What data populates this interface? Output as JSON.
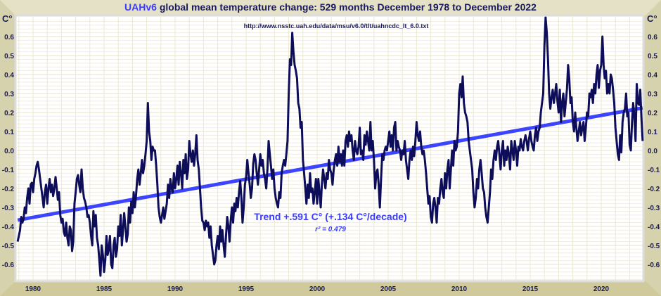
{
  "chart_data": {
    "type": "line",
    "title_prefix": "UAHv6",
    "title_rest": " global mean temperature change: 529 months December 1978 to December 2022",
    "subtitle": "http://www.nsstc.uah.edu/data/msu/v6.0/tlt/uahncdc_lt_6.0.txt",
    "ylabel_left": "C°",
    "ylabel_right": "C°",
    "ylim": [
      -0.68,
      0.68
    ],
    "xlim": [
      1978.9,
      2022.95
    ],
    "x_start": "December 1978",
    "x_end": "December 2022",
    "x_ticks": [
      "1980",
      "1985",
      "1990",
      "1995",
      "2000",
      "2005",
      "2010",
      "2015",
      "2020"
    ],
    "y_ticks": [
      "-0.6",
      "-0.5",
      "-0.4",
      "-0.3",
      "-0.2",
      "-0.1",
      "0.0",
      "0.1",
      "0.2",
      "0.3",
      "0.4",
      "0.5",
      "0.6"
    ],
    "grid": true,
    "trend": {
      "label": "Trend +.591 C° (+.134 C°/decade)",
      "r2_label": "r² = 0.479",
      "start": -0.367,
      "end": 0.224,
      "color": "#3c44ff"
    },
    "series_color": "#0d0d5a",
    "title_accent_color": "#3c3cff",
    "values": [
      -0.48,
      -0.45,
      -0.42,
      -0.35,
      -0.38,
      -0.36,
      -0.3,
      -0.33,
      -0.25,
      -0.2,
      -0.28,
      -0.18,
      -0.17,
      -0.22,
      -0.15,
      -0.12,
      -0.08,
      -0.06,
      -0.1,
      -0.15,
      -0.2,
      -0.25,
      -0.3,
      -0.22,
      -0.18,
      -0.28,
      -0.2,
      -0.15,
      -0.22,
      -0.18,
      -0.24,
      -0.2,
      -0.14,
      -0.2,
      -0.26,
      -0.22,
      -0.34,
      -0.38,
      -0.36,
      -0.43,
      -0.45,
      -0.38,
      -0.46,
      -0.5,
      -0.4,
      -0.42,
      -0.53,
      -0.48,
      -0.28,
      -0.22,
      -0.15,
      -0.13,
      -0.18,
      -0.22,
      -0.1,
      -0.2,
      -0.25,
      -0.27,
      -0.3,
      -0.35,
      -0.34,
      -0.38,
      -0.45,
      -0.5,
      -0.32,
      -0.4,
      -0.34,
      -0.46,
      -0.5,
      -0.58,
      -0.66,
      -0.5,
      -0.55,
      -0.64,
      -0.58,
      -0.45,
      -0.55,
      -0.52,
      -0.45,
      -0.6,
      -0.62,
      -0.5,
      -0.46,
      -0.56,
      -0.52,
      -0.4,
      -0.45,
      -0.34,
      -0.5,
      -0.42,
      -0.33,
      -0.4,
      -0.48,
      -0.44,
      -0.3,
      -0.38,
      -0.27,
      -0.33,
      -0.22,
      -0.3,
      -0.24,
      -0.15,
      -0.1,
      -0.18,
      -0.12,
      -0.05,
      -0.12,
      -0.08,
      -0.02,
      0.05,
      0.25,
      0.1,
      0.05,
      -0.05,
      0.02,
      0.0,
      0.0,
      -0.08,
      -0.18,
      -0.3,
      -0.35,
      -0.38,
      -0.34,
      -0.3,
      -0.36,
      -0.32,
      -0.28,
      -0.18,
      -0.25,
      -0.15,
      -0.2,
      -0.22,
      -0.12,
      -0.2,
      -0.15,
      -0.08,
      -0.18,
      -0.06,
      -0.12,
      -0.2,
      -0.05,
      -0.12,
      -0.02,
      -0.15,
      -0.1,
      0.05,
      -0.02,
      -0.06,
      0.0,
      -0.08,
      -0.02,
      0.08,
      -0.05,
      -0.1,
      -0.2,
      -0.3,
      -0.37,
      -0.38,
      -0.42,
      -0.37,
      -0.4,
      -0.38,
      -0.46,
      -0.4,
      -0.5,
      -0.55,
      -0.6,
      -0.58,
      -0.5,
      -0.45,
      -0.52,
      -0.4,
      -0.48,
      -0.42,
      -0.5,
      -0.56,
      -0.45,
      -0.35,
      -0.4,
      -0.48,
      -0.37,
      -0.3,
      -0.38,
      -0.28,
      -0.32,
      -0.25,
      -0.3,
      -0.22,
      -0.16,
      -0.25,
      -0.38,
      -0.3,
      -0.18,
      -0.14,
      -0.05,
      -0.12,
      -0.18,
      -0.25,
      -0.2,
      -0.07,
      -0.02,
      -0.05,
      -0.12,
      -0.18,
      -0.1,
      -0.02,
      -0.08,
      -0.05,
      -0.12,
      -0.15,
      -0.2,
      -0.1,
      0.05,
      -0.02,
      -0.08,
      -0.15,
      -0.1,
      -0.2,
      -0.25,
      -0.28,
      -0.3,
      -0.22,
      -0.25,
      -0.12,
      -0.08,
      -0.05,
      -0.08,
      -0.02,
      0.05,
      0.3,
      0.48,
      0.45,
      0.62,
      0.52,
      0.45,
      0.42,
      0.38,
      0.25,
      0.22,
      0.12,
      0.15,
      -0.05,
      -0.12,
      -0.2,
      -0.28,
      -0.18,
      -0.25,
      -0.12,
      -0.22,
      -0.2,
      -0.28,
      -0.22,
      -0.15,
      -0.28,
      -0.15,
      -0.22,
      -0.3,
      -0.18,
      -0.1,
      -0.15,
      -0.2,
      -0.12,
      -0.15,
      -0.05,
      -0.1,
      -0.12,
      -0.18,
      -0.1,
      -0.05,
      -0.02,
      -0.08,
      0.02,
      -0.06,
      -0.02,
      -0.08,
      0.0,
      -0.08,
      0.05,
      0.08,
      0.02,
      0.1,
      0.05,
      0.08,
      0.0,
      -0.05,
      0.05,
      0.0,
      -0.02,
      0.02,
      0.12,
      -0.02,
      0.0,
      -0.05,
      0.08,
      0.03,
      0.1,
      0.05,
      0.0,
      0.15,
      0.0,
      0.05,
      -0.05,
      -0.2,
      -0.12,
      -0.1,
      -0.18,
      -0.3,
      -0.15,
      -0.02,
      -0.05,
      0.0,
      0.02,
      0.0,
      0.05,
      0.1,
      0.02,
      0.08,
      0.0,
      0.12,
      0.15,
      0.0,
      0.05,
      0.02,
      0.0,
      -0.05,
      0.0,
      -0.02,
      0.05,
      -0.05,
      -0.1,
      -0.15,
      -0.05,
      0.0,
      -0.05,
      0.02,
      -0.03,
      0.05,
      0.15,
      0.08,
      0.05,
      0.1,
      0.02,
      -0.02,
      0.0,
      -0.05,
      -0.12,
      -0.2,
      -0.28,
      -0.24,
      -0.35,
      -0.38,
      -0.28,
      -0.25,
      -0.3,
      -0.38,
      -0.25,
      -0.28,
      -0.2,
      -0.15,
      -0.22,
      -0.25,
      -0.12,
      -0.2,
      -0.1,
      -0.05,
      -0.2,
      -0.1,
      0.0,
      -0.08,
      0.05,
      0.0,
      0.02,
      0.1,
      0.3,
      0.35,
      0.28,
      0.39,
      0.25,
      0.2,
      0.18,
      0.15,
      0.05,
      0.0,
      -0.05,
      -0.1,
      -0.22,
      -0.3,
      -0.25,
      -0.15,
      -0.2,
      -0.1,
      -0.05,
      -0.12,
      -0.2,
      -0.22,
      -0.3,
      -0.35,
      -0.38,
      -0.3,
      -0.22,
      -0.1,
      -0.15,
      -0.05,
      0.0,
      -0.05,
      0.02,
      0.05,
      -0.02,
      -0.1,
      0.0,
      0.05,
      -0.08,
      0.0,
      -0.05,
      0.02,
      -0.02,
      -0.1,
      0.05,
      0.0,
      -0.05,
      0.05,
      0.0,
      -0.08,
      0.02,
      0.0,
      0.06,
      0.02,
      0.0,
      0.05,
      0.08,
      0.05,
      0.0,
      0.06,
      0.1,
      0.05,
      0.02,
      0.0,
      0.08,
      0.12,
      0.05,
      0.1,
      0.12,
      0.2,
      0.25,
      0.3,
      0.55,
      0.7,
      0.62,
      0.48,
      0.3,
      0.22,
      0.28,
      0.32,
      0.25,
      0.3,
      0.35,
      0.26,
      0.2,
      0.32,
      0.15,
      0.25,
      0.3,
      0.18,
      0.25,
      0.32,
      0.45,
      0.38,
      0.25,
      0.28,
      0.15,
      0.1,
      0.2,
      0.12,
      0.05,
      0.1,
      0.15,
      0.08,
      0.12,
      0.15,
      0.05,
      0.12,
      0.2,
      0.18,
      0.3,
      0.28,
      0.32,
      0.25,
      0.35,
      0.3,
      0.4,
      0.45,
      0.33,
      0.42,
      0.45,
      0.6,
      0.45,
      0.38,
      0.42,
      0.3,
      0.35,
      0.3,
      0.4,
      0.38,
      0.32,
      0.25,
      0.12,
      0.05,
      -0.02,
      -0.05,
      0.08,
      -0.01,
      0.15,
      0.2,
      0.22,
      0.3,
      0.18,
      0.2,
      0.03,
      0.0,
      0.15,
      0.25,
      0.18,
      0.05,
      0.35,
      0.25,
      0.24,
      0.32,
      0.17,
      0.05
    ]
  }
}
